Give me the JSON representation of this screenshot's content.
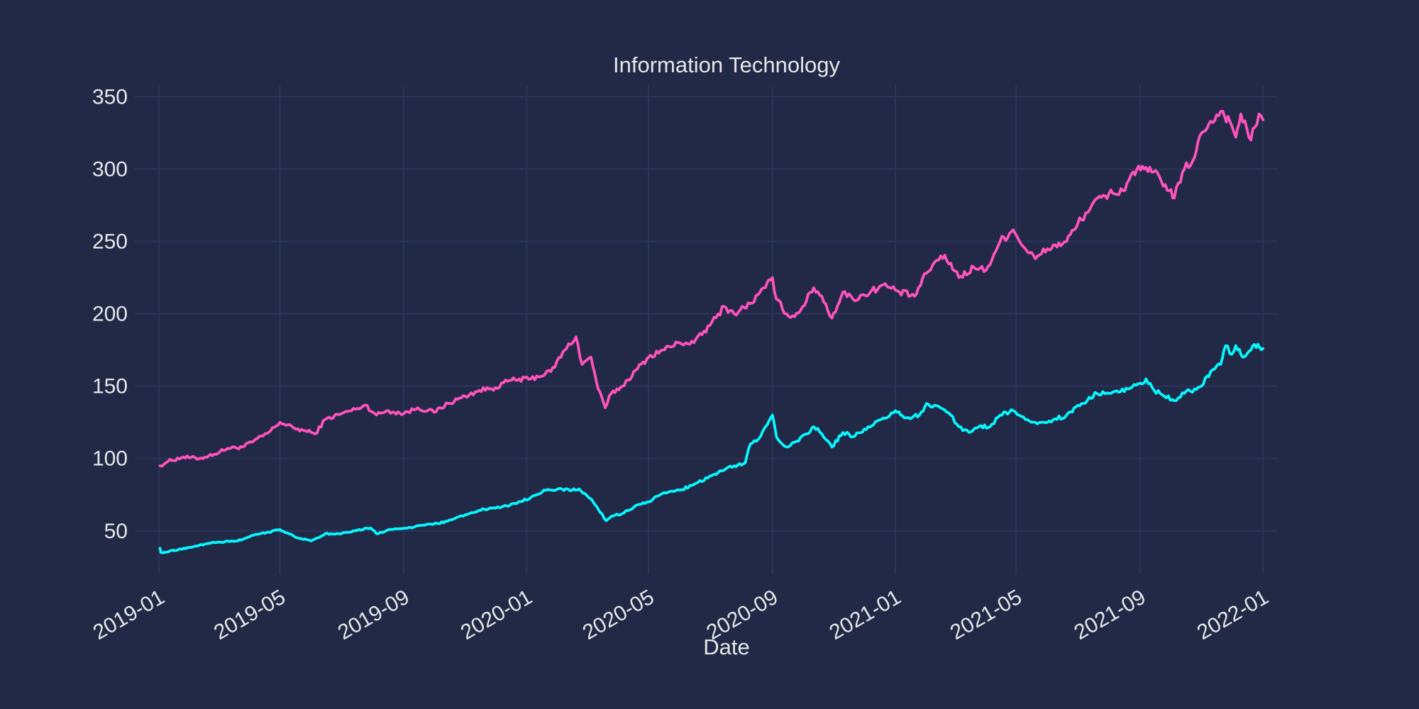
{
  "chart_data": {
    "type": "line",
    "title": "Information Technology",
    "xlabel": "Date",
    "ylabel": "",
    "x_type": "date",
    "xlim": [
      "2019-01-01",
      "2022-01-15"
    ],
    "ylim": [
      20,
      358
    ],
    "grid": true,
    "background_color": "#212946",
    "grid_color": "#2A3459",
    "text_color": "#e6e6e6",
    "x_ticks": [
      "2019-01",
      "2019-05",
      "2019-09",
      "2020-01",
      "2020-05",
      "2020-09",
      "2021-01",
      "2021-05",
      "2021-09",
      "2022-01"
    ],
    "y_ticks": [
      50,
      100,
      150,
      200,
      250,
      300,
      350
    ],
    "series": [
      {
        "color": "#FE53BB",
        "points": [
          [
            "2019-01-02",
            95
          ],
          [
            "2019-01-10",
            98
          ],
          [
            "2019-01-25",
            101
          ],
          [
            "2019-02-10",
            100
          ],
          [
            "2019-02-25",
            103
          ],
          [
            "2019-03-10",
            107
          ],
          [
            "2019-03-25",
            108
          ],
          [
            "2019-04-05",
            112
          ],
          [
            "2019-04-20",
            118
          ],
          [
            "2019-05-01",
            125
          ],
          [
            "2019-05-15",
            121
          ],
          [
            "2019-06-01",
            118
          ],
          [
            "2019-06-05",
            117
          ],
          [
            "2019-06-15",
            127
          ],
          [
            "2019-07-01",
            131
          ],
          [
            "2019-07-15",
            134
          ],
          [
            "2019-07-25",
            137
          ],
          [
            "2019-08-05",
            130
          ],
          [
            "2019-08-15",
            133
          ],
          [
            "2019-09-01",
            131
          ],
          [
            "2019-09-15",
            135
          ],
          [
            "2019-10-01",
            132
          ],
          [
            "2019-10-15",
            138
          ],
          [
            "2019-11-01",
            143
          ],
          [
            "2019-11-15",
            147
          ],
          [
            "2019-12-01",
            149
          ],
          [
            "2019-12-15",
            154
          ],
          [
            "2020-01-05",
            155
          ],
          [
            "2020-01-25",
            160
          ],
          [
            "2020-02-08",
            175
          ],
          [
            "2020-02-19",
            184
          ],
          [
            "2020-02-25",
            165
          ],
          [
            "2020-03-05",
            170
          ],
          [
            "2020-03-12",
            148
          ],
          [
            "2020-03-19",
            135
          ],
          [
            "2020-03-25",
            145
          ],
          [
            "2020-04-05",
            150
          ],
          [
            "2020-04-20",
            162
          ],
          [
            "2020-05-01",
            170
          ],
          [
            "2020-05-15",
            175
          ],
          [
            "2020-06-01",
            180
          ],
          [
            "2020-06-15",
            180
          ],
          [
            "2020-07-01",
            192
          ],
          [
            "2020-07-15",
            205
          ],
          [
            "2020-07-25",
            200
          ],
          [
            "2020-08-10",
            207
          ],
          [
            "2020-08-25",
            218
          ],
          [
            "2020-09-01",
            225
          ],
          [
            "2020-09-05",
            210
          ],
          [
            "2020-09-15",
            200
          ],
          [
            "2020-09-23",
            198
          ],
          [
            "2020-10-01",
            205
          ],
          [
            "2020-10-12",
            218
          ],
          [
            "2020-10-20",
            212
          ],
          [
            "2020-10-30",
            197
          ],
          [
            "2020-11-10",
            215
          ],
          [
            "2020-11-20",
            210
          ],
          [
            "2020-12-01",
            213
          ],
          [
            "2020-12-20",
            220
          ],
          [
            "2021-01-05",
            215
          ],
          [
            "2021-01-20",
            212
          ],
          [
            "2021-02-01",
            228
          ],
          [
            "2021-02-15",
            240
          ],
          [
            "2021-02-25",
            235
          ],
          [
            "2021-03-05",
            225
          ],
          [
            "2021-03-20",
            232
          ],
          [
            "2021-04-01",
            230
          ],
          [
            "2021-04-15",
            250
          ],
          [
            "2021-04-28",
            258
          ],
          [
            "2021-05-10",
            245
          ],
          [
            "2021-05-20",
            238
          ],
          [
            "2021-06-01",
            245
          ],
          [
            "2021-06-20",
            250
          ],
          [
            "2021-07-01",
            262
          ],
          [
            "2021-07-15",
            275
          ],
          [
            "2021-08-01",
            283
          ],
          [
            "2021-08-15",
            285
          ],
          [
            "2021-08-25",
            298
          ],
          [
            "2021-09-05",
            300
          ],
          [
            "2021-09-20",
            295
          ],
          [
            "2021-09-30",
            285
          ],
          [
            "2021-10-05",
            280
          ],
          [
            "2021-10-15",
            300
          ],
          [
            "2021-10-25",
            308
          ],
          [
            "2021-11-01",
            325
          ],
          [
            "2021-11-10",
            333
          ],
          [
            "2021-11-22",
            340
          ],
          [
            "2021-12-01",
            330
          ],
          [
            "2021-12-05",
            322
          ],
          [
            "2021-12-10",
            338
          ],
          [
            "2021-12-20",
            320
          ],
          [
            "2021-12-28",
            338
          ],
          [
            "2022-01-01",
            334
          ]
        ]
      },
      {
        "color": "#08F7FE",
        "points": [
          [
            "2019-01-02",
            38
          ],
          [
            "2019-01-03",
            35
          ],
          [
            "2019-01-20",
            37
          ],
          [
            "2019-02-10",
            40
          ],
          [
            "2019-02-25",
            42
          ],
          [
            "2019-03-20",
            43
          ],
          [
            "2019-04-05",
            47
          ],
          [
            "2019-04-20",
            49
          ],
          [
            "2019-05-01",
            51
          ],
          [
            "2019-05-10",
            48
          ],
          [
            "2019-05-20",
            45
          ],
          [
            "2019-06-01",
            43
          ],
          [
            "2019-06-15",
            48
          ],
          [
            "2019-07-01",
            48
          ],
          [
            "2019-07-15",
            50
          ],
          [
            "2019-07-30",
            52
          ],
          [
            "2019-08-05",
            48
          ],
          [
            "2019-08-20",
            51
          ],
          [
            "2019-09-05",
            52
          ],
          [
            "2019-09-20",
            54
          ],
          [
            "2019-10-05",
            55
          ],
          [
            "2019-10-20",
            58
          ],
          [
            "2019-11-05",
            62
          ],
          [
            "2019-11-20",
            65
          ],
          [
            "2019-12-05",
            66
          ],
          [
            "2019-12-20",
            69
          ],
          [
            "2020-01-05",
            73
          ],
          [
            "2020-01-20",
            78
          ],
          [
            "2020-02-01",
            79
          ],
          [
            "2020-02-15",
            78
          ],
          [
            "2020-02-22",
            79
          ],
          [
            "2020-03-05",
            72
          ],
          [
            "2020-03-12",
            65
          ],
          [
            "2020-03-20",
            57
          ],
          [
            "2020-03-25",
            60
          ],
          [
            "2020-04-05",
            62
          ],
          [
            "2020-04-20",
            68
          ],
          [
            "2020-05-01",
            70
          ],
          [
            "2020-05-15",
            76
          ],
          [
            "2020-06-01",
            78
          ],
          [
            "2020-06-15",
            82
          ],
          [
            "2020-07-01",
            88
          ],
          [
            "2020-07-15",
            92
          ],
          [
            "2020-07-25",
            95
          ],
          [
            "2020-08-05",
            97
          ],
          [
            "2020-08-10",
            110
          ],
          [
            "2020-08-20",
            115
          ],
          [
            "2020-08-25",
            122
          ],
          [
            "2020-09-01",
            130
          ],
          [
            "2020-09-05",
            115
          ],
          [
            "2020-09-15",
            108
          ],
          [
            "2020-09-25",
            112
          ],
          [
            "2020-10-05",
            117
          ],
          [
            "2020-10-12",
            122
          ],
          [
            "2020-10-20",
            117
          ],
          [
            "2020-10-30",
            108
          ],
          [
            "2020-11-10",
            118
          ],
          [
            "2020-11-20",
            115
          ],
          [
            "2020-12-05",
            122
          ],
          [
            "2020-12-20",
            128
          ],
          [
            "2021-01-01",
            133
          ],
          [
            "2021-01-10",
            128
          ],
          [
            "2021-01-25",
            130
          ],
          [
            "2021-02-01",
            138
          ],
          [
            "2021-02-15",
            135
          ],
          [
            "2021-02-25",
            130
          ],
          [
            "2021-03-05",
            122
          ],
          [
            "2021-03-15",
            118
          ],
          [
            "2021-03-25",
            122
          ],
          [
            "2021-04-05",
            122
          ],
          [
            "2021-04-15",
            130
          ],
          [
            "2021-04-28",
            133
          ],
          [
            "2021-05-10",
            127
          ],
          [
            "2021-05-20",
            125
          ],
          [
            "2021-06-01",
            125
          ],
          [
            "2021-06-20",
            130
          ],
          [
            "2021-07-05",
            138
          ],
          [
            "2021-07-20",
            145
          ],
          [
            "2021-08-05",
            146
          ],
          [
            "2021-08-20",
            148
          ],
          [
            "2021-09-01",
            152
          ],
          [
            "2021-09-07",
            155
          ],
          [
            "2021-09-15",
            147
          ],
          [
            "2021-09-25",
            143
          ],
          [
            "2021-10-05",
            140
          ],
          [
            "2021-10-15",
            145
          ],
          [
            "2021-10-25",
            148
          ],
          [
            "2021-11-01",
            150
          ],
          [
            "2021-11-10",
            160
          ],
          [
            "2021-11-20",
            165
          ],
          [
            "2021-11-25",
            178
          ],
          [
            "2021-12-01",
            172
          ],
          [
            "2021-12-05",
            178
          ],
          [
            "2021-12-12",
            170
          ],
          [
            "2021-12-20",
            175
          ],
          [
            "2021-12-27",
            179
          ],
          [
            "2022-01-01",
            176
          ]
        ]
      }
    ]
  }
}
